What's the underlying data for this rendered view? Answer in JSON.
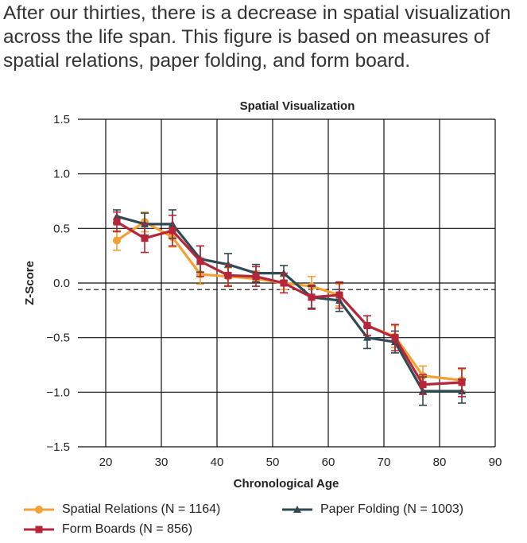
{
  "caption": "After our thirties, there is a decrease in spatial visualization across the life span. This figure is based on measures of spatial relations, paper folding, and form board.",
  "chart_data": {
    "type": "line",
    "title": "Spatial Visualization",
    "xlabel": "Chronological Age",
    "ylabel": "Z-Score",
    "xlim": [
      15,
      90
    ],
    "ylim": [
      -1.5,
      1.5
    ],
    "xticks": [
      20,
      30,
      40,
      50,
      60,
      70,
      80,
      90
    ],
    "yticks": [
      1.5,
      1.0,
      0.5,
      0.0,
      -0.5,
      -1.0,
      -1.5
    ],
    "ytick_labels": [
      "1.5",
      "1.0",
      "0.5",
      "0.0",
      "−0.5",
      "−1.0",
      "−1.5"
    ],
    "grid": true,
    "reference_line": -0.06,
    "series": [
      {
        "name": "Spatial Relations",
        "n_label": "(N = 1164)",
        "n_value": 1164,
        "color": "#F4A033",
        "marker": "circle",
        "x": [
          22,
          27,
          32,
          37,
          42,
          47,
          52,
          57,
          62,
          67,
          72,
          77,
          84
        ],
        "y": [
          0.39,
          0.56,
          0.42,
          0.08,
          0.06,
          0.04,
          0.0,
          -0.03,
          -0.11,
          -0.39,
          -0.49,
          -0.85,
          -0.89
        ],
        "err": [
          0.09,
          0.09,
          0.09,
          0.09,
          0.08,
          0.07,
          0.06,
          0.09,
          0.1,
          0.09,
          0.1,
          0.09,
          0.1
        ]
      },
      {
        "name": "Paper Folding",
        "n_label": "(N = 1003)",
        "n_value": 1003,
        "color": "#2F4A52",
        "marker": "triangle",
        "x": [
          22,
          27,
          32,
          37,
          42,
          47,
          52,
          57,
          62,
          67,
          72,
          77,
          84
        ],
        "y": [
          0.61,
          0.54,
          0.54,
          0.22,
          0.17,
          0.09,
          0.09,
          -0.13,
          -0.16,
          -0.5,
          -0.54,
          -0.99,
          -0.99
        ],
        "err": [
          0.06,
          0.1,
          0.13,
          0.12,
          0.1,
          0.08,
          0.07,
          0.1,
          0.1,
          0.1,
          0.1,
          0.13,
          0.11
        ]
      },
      {
        "name": "Form Boards",
        "n_label": "(N = 856)",
        "n_value": 856,
        "color": "#B5263A",
        "marker": "square",
        "x": [
          22,
          27,
          32,
          37,
          42,
          47,
          52,
          57,
          62,
          67,
          72,
          77,
          84
        ],
        "y": [
          0.56,
          0.41,
          0.48,
          0.2,
          0.07,
          0.06,
          0.0,
          -0.13,
          -0.11,
          -0.39,
          -0.5,
          -0.93,
          -0.91
        ],
        "err": [
          0.09,
          0.13,
          0.14,
          0.14,
          0.1,
          0.09,
          0.09,
          0.11,
          0.12,
          0.09,
          0.12,
          0.09,
          0.13
        ]
      }
    ]
  }
}
